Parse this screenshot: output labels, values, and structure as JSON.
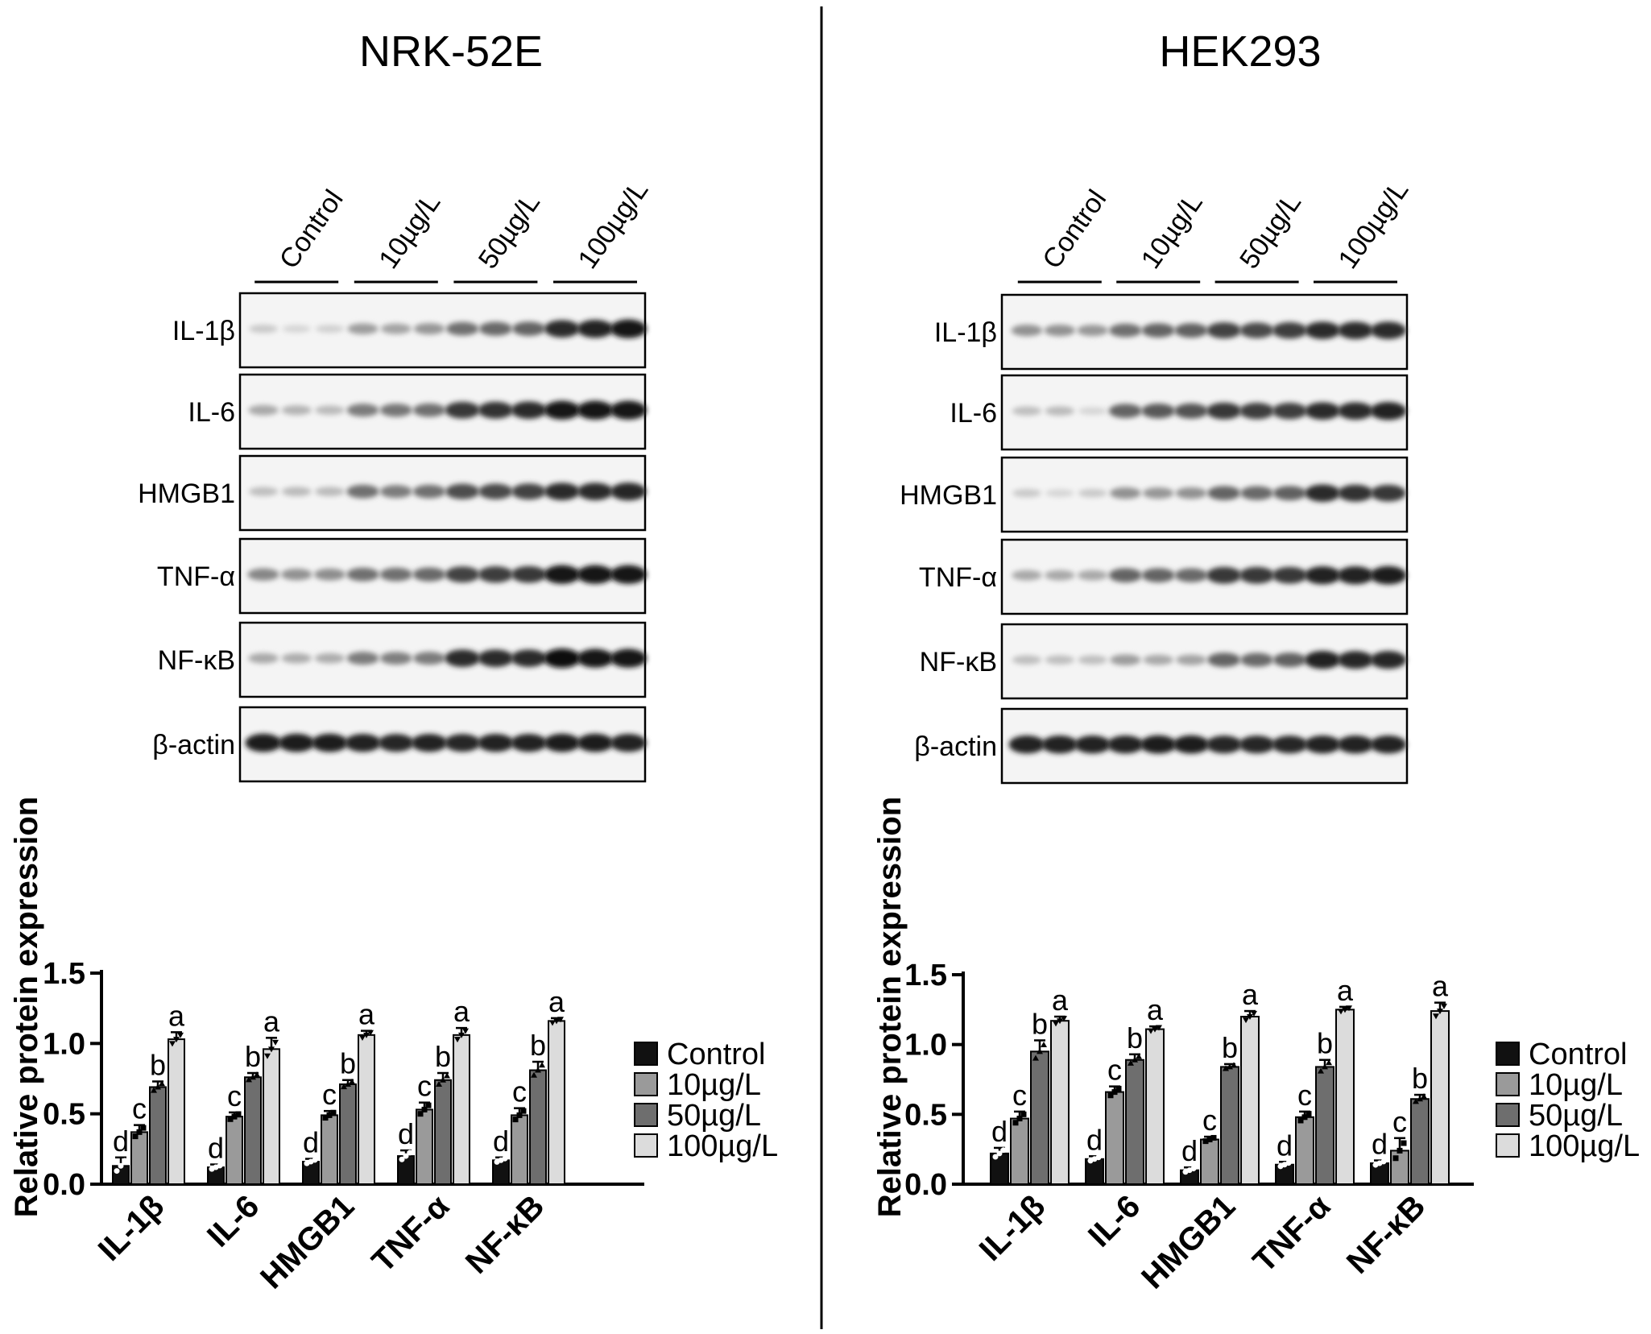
{
  "panels": [
    {
      "title": "NRK-52E",
      "lanes": {
        "groups": [
          "Control",
          "10µg/L",
          "50µg/L",
          "100µg/L"
        ],
        "replicates": 3
      },
      "blots": [
        {
          "label": "IL-1β",
          "intensity": [
            0.15,
            0.1,
            0.12,
            0.35,
            0.32,
            0.38,
            0.55,
            0.58,
            0.6,
            0.85,
            0.9,
            0.95
          ]
        },
        {
          "label": "IL-6",
          "intensity": [
            0.3,
            0.25,
            0.22,
            0.5,
            0.52,
            0.55,
            0.8,
            0.82,
            0.85,
            0.95,
            0.95,
            0.95
          ]
        },
        {
          "label": "HMGB1",
          "intensity": [
            0.2,
            0.22,
            0.22,
            0.55,
            0.5,
            0.55,
            0.7,
            0.72,
            0.75,
            0.85,
            0.85,
            0.88
          ]
        },
        {
          "label": "TNF-α",
          "intensity": [
            0.45,
            0.4,
            0.42,
            0.55,
            0.55,
            0.58,
            0.75,
            0.78,
            0.8,
            0.95,
            0.95,
            0.95
          ]
        },
        {
          "label": "NF-κB",
          "intensity": [
            0.3,
            0.28,
            0.28,
            0.5,
            0.48,
            0.5,
            0.85,
            0.85,
            0.85,
            1.0,
            0.95,
            0.95
          ]
        },
        {
          "label": "β-actin",
          "intensity": [
            0.92,
            0.92,
            0.92,
            0.9,
            0.88,
            0.9,
            0.88,
            0.9,
            0.9,
            0.92,
            0.92,
            0.9
          ]
        }
      ]
    },
    {
      "title": "HEK293",
      "lanes": {
        "groups": [
          "Control",
          "10µg/L",
          "50µg/L",
          "100µg/L"
        ],
        "replicates": 3
      },
      "blots": [
        {
          "label": "IL-1β",
          "intensity": [
            0.4,
            0.4,
            0.38,
            0.55,
            0.6,
            0.62,
            0.75,
            0.72,
            0.78,
            0.85,
            0.85,
            0.85
          ]
        },
        {
          "label": "IL-6",
          "intensity": [
            0.2,
            0.22,
            0.1,
            0.6,
            0.65,
            0.68,
            0.8,
            0.78,
            0.78,
            0.85,
            0.85,
            0.9
          ]
        },
        {
          "label": "HMGB1",
          "intensity": [
            0.15,
            0.1,
            0.15,
            0.4,
            0.38,
            0.4,
            0.6,
            0.58,
            0.62,
            0.85,
            0.82,
            0.8
          ]
        },
        {
          "label": "TNF-α",
          "intensity": [
            0.3,
            0.3,
            0.3,
            0.6,
            0.6,
            0.58,
            0.8,
            0.8,
            0.8,
            0.9,
            0.9,
            0.92
          ]
        },
        {
          "label": "NF-κB",
          "intensity": [
            0.2,
            0.2,
            0.2,
            0.35,
            0.3,
            0.32,
            0.6,
            0.58,
            0.62,
            0.9,
            0.88,
            0.88
          ]
        },
        {
          "label": "β-actin",
          "intensity": [
            0.9,
            0.9,
            0.9,
            0.9,
            0.92,
            0.92,
            0.88,
            0.88,
            0.88,
            0.9,
            0.9,
            0.9
          ]
        }
      ]
    }
  ],
  "chart_data": [
    {
      "type": "bar",
      "panel": "NRK-52E",
      "categories": [
        "IL-1β",
        "IL-6",
        "HMGB1",
        "TNF-α",
        "NF-κB"
      ],
      "ylabel": "Relative protein expression",
      "xlabel": "",
      "ylim": [
        0,
        1.5
      ],
      "yticks": [
        "0.0",
        "0.5",
        "1.0",
        "1.5"
      ],
      "legend_position": "right",
      "series": [
        {
          "name": "Control",
          "color": "#111111",
          "values": [
            0.13,
            0.12,
            0.16,
            0.2,
            0.17
          ],
          "errors": [
            0.06,
            0.02,
            0.02,
            0.04,
            0.02
          ],
          "letters": [
            "d",
            "d",
            "d",
            "d",
            "d"
          ]
        },
        {
          "name": "10µg/L",
          "color": "#9a9a9a",
          "values": [
            0.37,
            0.48,
            0.49,
            0.53,
            0.49
          ],
          "errors": [
            0.05,
            0.03,
            0.03,
            0.05,
            0.05
          ],
          "letters": [
            "c",
            "c",
            "c",
            "c",
            "c"
          ]
        },
        {
          "name": "50µg/L",
          "color": "#6e6e6e",
          "values": [
            0.69,
            0.76,
            0.71,
            0.74,
            0.81
          ],
          "errors": [
            0.04,
            0.03,
            0.03,
            0.05,
            0.06
          ],
          "letters": [
            "b",
            "b",
            "b",
            "b",
            "b"
          ]
        },
        {
          "name": "100µg/L",
          "color": "#dcdcdc",
          "values": [
            1.03,
            0.96,
            1.06,
            1.06,
            1.16
          ],
          "errors": [
            0.05,
            0.08,
            0.03,
            0.05,
            0.02
          ],
          "letters": [
            "a",
            "a",
            "a",
            "a",
            "a"
          ]
        }
      ]
    },
    {
      "type": "bar",
      "panel": "HEK293",
      "categories": [
        "IL-1β",
        "IL-6",
        "HMGB1",
        "TNF-α",
        "NF-κB"
      ],
      "ylabel": "Relative protein expression",
      "xlabel": "",
      "ylim": [
        0,
        1.5
      ],
      "yticks": [
        "0.0",
        "0.5",
        "1.0",
        "1.5"
      ],
      "legend_position": "right",
      "series": [
        {
          "name": "Control",
          "color": "#111111",
          "values": [
            0.22,
            0.18,
            0.1,
            0.14,
            0.15
          ],
          "errors": [
            0.04,
            0.02,
            0.02,
            0.02,
            0.02
          ],
          "letters": [
            "d",
            "d",
            "d",
            "d",
            "d"
          ]
        },
        {
          "name": "10µg/L",
          "color": "#9a9a9a",
          "values": [
            0.47,
            0.66,
            0.32,
            0.48,
            0.24
          ],
          "errors": [
            0.05,
            0.04,
            0.02,
            0.04,
            0.09
          ],
          "letters": [
            "c",
            "c",
            "c",
            "c",
            "c"
          ]
        },
        {
          "name": "50µg/L",
          "color": "#6e6e6e",
          "values": [
            0.95,
            0.89,
            0.84,
            0.84,
            0.61
          ],
          "errors": [
            0.08,
            0.04,
            0.02,
            0.05,
            0.03
          ],
          "letters": [
            "b",
            "b",
            "b",
            "b",
            "b"
          ]
        },
        {
          "name": "100µg/L",
          "color": "#dcdcdc",
          "values": [
            1.17,
            1.11,
            1.2,
            1.25,
            1.24
          ],
          "errors": [
            0.03,
            0.02,
            0.04,
            0.02,
            0.06
          ],
          "letters": [
            "a",
            "a",
            "a",
            "a",
            "a"
          ]
        }
      ]
    }
  ]
}
